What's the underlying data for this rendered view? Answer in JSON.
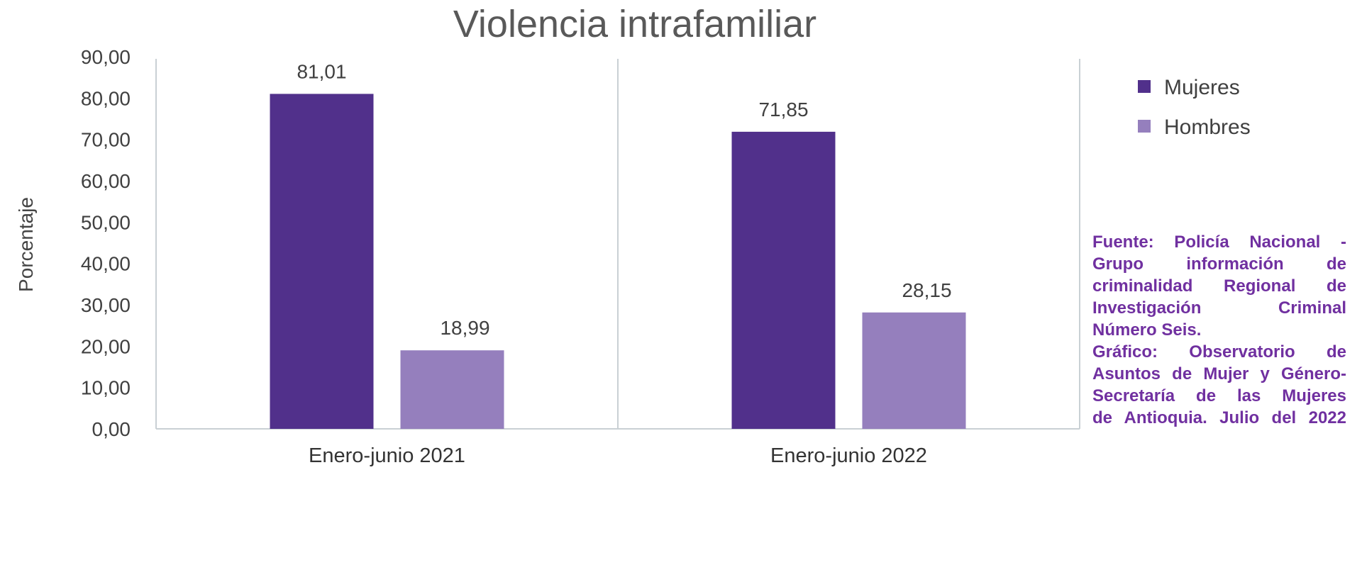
{
  "chart_data": {
    "type": "bar",
    "title": "Violencia intrafamiliar",
    "xlabel": "",
    "ylabel": "Porcentaje",
    "categories": [
      "Enero-junio 2021",
      "Enero-junio 2022"
    ],
    "series": [
      {
        "name": "Mujeres",
        "color": "#51308b",
        "values": [
          81.01,
          71.85
        ]
      },
      {
        "name": "Hombres",
        "color": "#957fbd",
        "values": [
          18.99,
          28.15
        ]
      }
    ],
    "ylim": [
      0,
      90
    ],
    "yticks": [
      "0,00",
      "10,00",
      "20,00",
      "30,00",
      "40,00",
      "50,00",
      "60,00",
      "70,00",
      "80,00",
      "90,00"
    ],
    "grid": false,
    "legend_position": "right"
  },
  "source": {
    "color": "#7030a0",
    "lines": [
      "Fuente: Policía Nacional -",
      "Grupo información de",
      "criminalidad Regional de",
      "Investigación Criminal",
      "Número Seis.",
      "Gráfico: Observatorio de",
      "Asuntos de Mujer y Género-",
      "Secretaría de las Mujeres",
      "de Antioquia. Julio del 2022"
    ]
  }
}
